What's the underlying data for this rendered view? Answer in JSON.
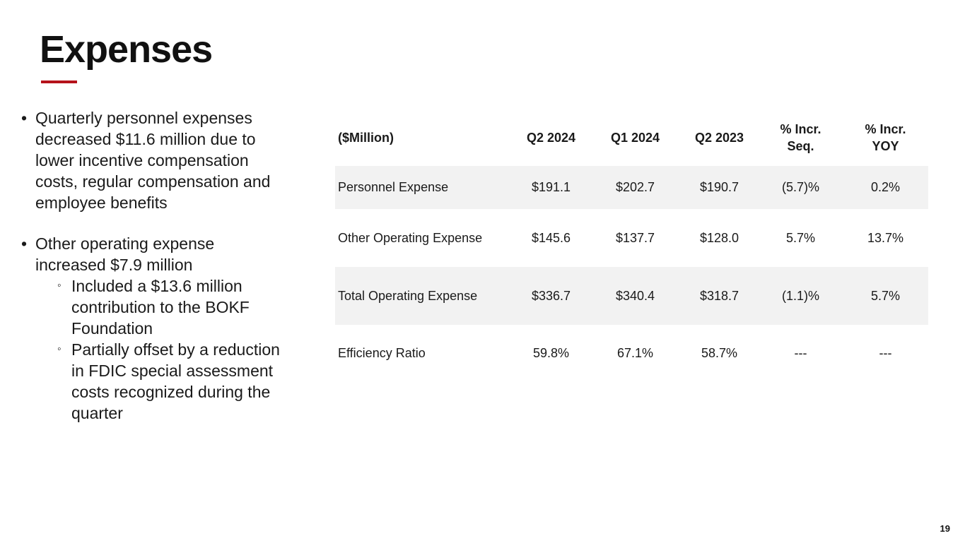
{
  "title": "Expenses",
  "bullets": [
    {
      "text": "Quarterly personnel expenses decreased $11.6 million due to lower incentive compensation costs, regular compensation and employee benefits",
      "sub": []
    },
    {
      "text": "Other operating expense increased $7.9 million",
      "sub": [
        "Included a $13.6 million contribution to the BOKF Foundation",
        "Partially offset by a reduction in FDIC special assessment costs recognized during the quarter"
      ]
    }
  ],
  "table": {
    "headers": [
      "($Million)",
      "Q2 2024",
      "Q1 2024",
      "Q2 2023",
      "% Incr. Seq.",
      "% Incr. YOY"
    ],
    "rows": [
      [
        "Personnel Expense",
        "$191.1",
        "$202.7",
        "$190.7",
        "(5.7)%",
        "0.2%"
      ],
      [
        "Other Operating Expense",
        "$145.6",
        "$137.7",
        "$128.0",
        "5.7%",
        "13.7%"
      ],
      [
        "Total Operating Expense",
        "$336.7",
        "$340.4",
        "$318.7",
        "(1.1)%",
        "5.7%"
      ],
      [
        "Efficiency Ratio",
        "59.8%",
        "67.1%",
        "58.7%",
        "---",
        "---"
      ]
    ]
  },
  "page_number": "19",
  "colors": {
    "accent": "#b5121b",
    "row_shade": "#f2f2f2",
    "text": "#1a1a1a"
  }
}
